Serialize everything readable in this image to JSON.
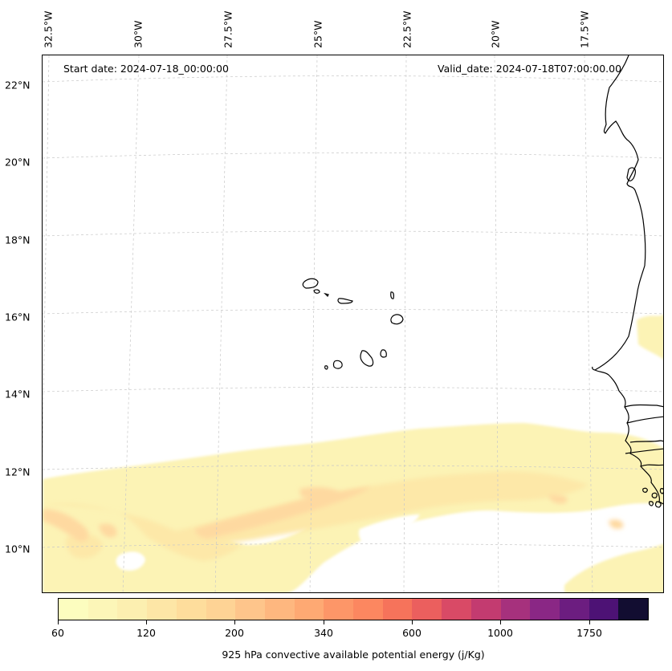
{
  "header": {
    "start_date": "Start date: 2024-07-18_00:00:00",
    "valid_date": "Valid_date: 2024-07-18T07:00:00.00"
  },
  "longitude_labels": [
    "32.5°W",
    "30°W",
    "27.5°W",
    "25°W",
    "22.5°W",
    "20°W",
    "17.5°W"
  ],
  "latitude_labels": [
    "22°N",
    "20°N",
    "18°N",
    "16°N",
    "14°N",
    "12°N",
    "10°N"
  ],
  "colorbar": {
    "title": "925 hPa convective available potential energy (j/Kg)",
    "tick_labels": [
      "60",
      "120",
      "200",
      "340",
      "600",
      "1000",
      "1750"
    ],
    "colors": [
      "#fcfdbf",
      "#fcf6b8",
      "#fcefb0",
      "#fde6a6",
      "#fedd9c",
      "#fed395",
      "#fec58b",
      "#feb77f",
      "#fea973",
      "#fd9668",
      "#fc8760",
      "#f6735b",
      "#eb5f5e",
      "#d94a66",
      "#c33b70",
      "#a6317d",
      "#8a2785",
      "#6c1d80",
      "#4d1275",
      "#120d31"
    ]
  },
  "map": {
    "lon_range": [
      -33,
      -16
    ],
    "lat_range": [
      9,
      22.8
    ],
    "field_colors": [
      "#fcf3b5",
      "#fde8a8",
      "#fed9a0",
      "#fdc38e",
      "#fbb084"
    ]
  }
}
